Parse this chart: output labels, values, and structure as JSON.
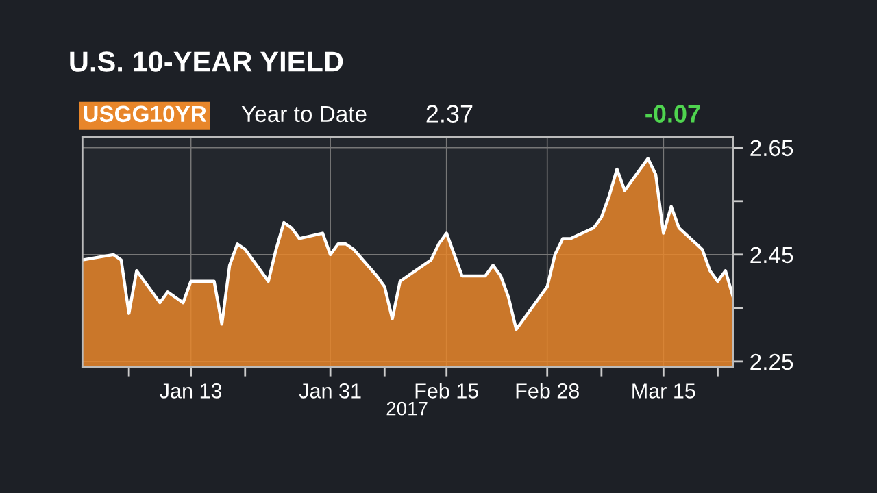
{
  "chart_data": {
    "type": "area",
    "title": "U.S. 10-YEAR YIELD",
    "annotations": [
      "USGG10YR",
      "Year to Date",
      "2.37",
      "-0.07",
      "2017"
    ],
    "x": [
      "2016-12-30",
      "2017-01-03",
      "2017-01-04",
      "2017-01-05",
      "2017-01-06",
      "2017-01-09",
      "2017-01-10",
      "2017-01-11",
      "2017-01-12",
      "2017-01-13",
      "2017-01-16",
      "2017-01-17",
      "2017-01-18",
      "2017-01-19",
      "2017-01-20",
      "2017-01-23",
      "2017-01-24",
      "2017-01-25",
      "2017-01-26",
      "2017-01-27",
      "2017-01-30",
      "2017-01-31",
      "2017-02-01",
      "2017-02-02",
      "2017-02-03",
      "2017-02-06",
      "2017-02-07",
      "2017-02-08",
      "2017-02-09",
      "2017-02-10",
      "2017-02-13",
      "2017-02-14",
      "2017-02-15",
      "2017-02-16",
      "2017-02-17",
      "2017-02-20",
      "2017-02-21",
      "2017-02-22",
      "2017-02-23",
      "2017-02-24",
      "2017-02-27",
      "2017-02-28",
      "2017-03-01",
      "2017-03-02",
      "2017-03-03",
      "2017-03-06",
      "2017-03-07",
      "2017-03-08",
      "2017-03-09",
      "2017-03-10",
      "2017-03-13",
      "2017-03-14",
      "2017-03-15",
      "2017-03-16",
      "2017-03-17",
      "2017-03-20",
      "2017-03-21",
      "2017-03-22",
      "2017-03-23",
      "2017-03-24"
    ],
    "series": [
      {
        "color": "#e8862a",
        "values": [
          2.44,
          2.45,
          2.44,
          2.34,
          2.42,
          2.36,
          2.38,
          2.37,
          2.36,
          2.4,
          2.4,
          2.32,
          2.43,
          2.47,
          2.46,
          2.4,
          2.46,
          2.51,
          2.5,
          2.48,
          2.49,
          2.45,
          2.47,
          2.47,
          2.46,
          2.41,
          2.39,
          2.33,
          2.4,
          2.41,
          2.44,
          2.47,
          2.49,
          2.45,
          2.41,
          2.41,
          2.43,
          2.41,
          2.37,
          2.31,
          2.37,
          2.39,
          2.45,
          2.48,
          2.48,
          2.5,
          2.52,
          2.56,
          2.61,
          2.57,
          2.63,
          2.6,
          2.49,
          2.54,
          2.5,
          2.46,
          2.42,
          2.4,
          2.42,
          2.37
        ]
      }
    ],
    "xlim": [
      "2016-12-30",
      "2017-03-24"
    ],
    "xticks": [
      {
        "value": "2017-01-05",
        "label": null
      },
      {
        "value": "2017-01-13",
        "label": "Jan 13"
      },
      {
        "value": "2017-01-20",
        "label": null
      },
      {
        "value": "2017-01-31",
        "label": "Jan 31"
      },
      {
        "value": "2017-02-07",
        "label": null
      },
      {
        "value": "2017-02-15",
        "label": "Feb 15"
      },
      {
        "value": "2017-02-28",
        "label": "Feb 28"
      },
      {
        "value": "2017-03-07",
        "label": null
      },
      {
        "value": "2017-03-15",
        "label": "Mar 15"
      },
      {
        "value": "2017-03-22",
        "label": null
      }
    ],
    "ylim": [
      2.24,
      2.67
    ],
    "yticks": [
      2.25,
      {
        "value": 2.35,
        "label": null
      },
      2.45,
      {
        "value": 2.55,
        "label": null
      },
      2.65
    ],
    "grid": true
  }
}
